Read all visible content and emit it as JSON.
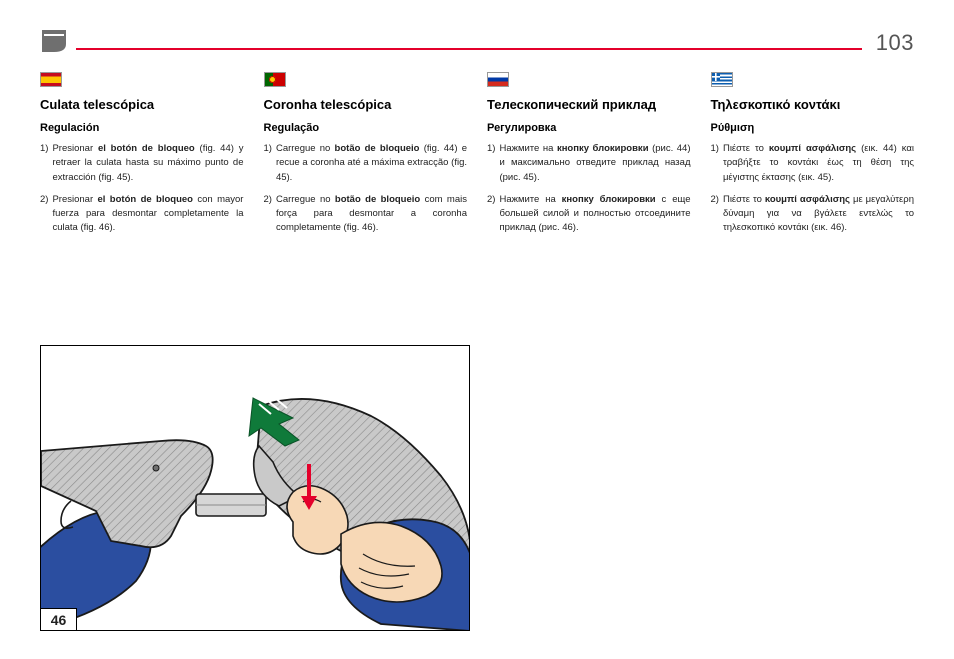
{
  "page_number": "103",
  "columns": [
    {
      "flag_class": "flag-es",
      "title": "Culata telescópica",
      "subtitle": "Regulación",
      "items": [
        {
          "marker": "1)",
          "html": "Presionar <b>el botón de bloqueo</b> (fig. 44) y retraer la culata hasta su máximo punto de extracción (fig. 45)."
        },
        {
          "marker": "2)",
          "html": "Presionar <b>el botón de bloqueo</b> con mayor fuerza para desmontar completamente la culata (fig. 46)."
        }
      ]
    },
    {
      "flag_class": "flag-pt",
      "title": "Coronha telescópica",
      "subtitle": "Regulação",
      "items": [
        {
          "marker": "1)",
          "html": "Carregue no <b>botão de bloqueio</b> (fig. 44) e recue a coronha até a máxima extracção (fig. 45)."
        },
        {
          "marker": "2)",
          "html": "Carregue no <b>botão de bloqueio</b> com mais força para desmontar a coronha completamente (fig. 46)."
        }
      ]
    },
    {
      "flag_class": "flag-ru",
      "title": "Телескопический приклад",
      "subtitle": "Регулировка",
      "items": [
        {
          "marker": "1)",
          "html": "Нажмите на <b>кнопку блокировки</b> (рис. 44) и максимально отведите приклад назад (рис. 45)."
        },
        {
          "marker": "2)",
          "html": "Нажмите на <b>кнопку блокировки</b> с еще большей силой и полностью отсоедините приклад (рис. 46)."
        }
      ]
    },
    {
      "flag_class": "flag-gr",
      "title": "Τηλεσκοπικό κοντάκι",
      "subtitle": "Ρύθμιση",
      "items": [
        {
          "marker": "1)",
          "html": "Πιέστε το <b>κουμπί ασφάλισης</b> (εικ. 44) και τραβήξτε το κοντάκι έως τη θέση της μέγιστης έκτασης (εικ. 45)."
        },
        {
          "marker": "2)",
          "html": "Πιέστε το <b>κουμπί ασφάλισης</b> με μεγαλύτερη δύναμη για να βγάλετε εντελώς το τηλεσκοπικό κοντάκι (εικ. 46)."
        }
      ]
    }
  ],
  "figure": {
    "label": "46",
    "colors": {
      "stroke": "#1a1a1a",
      "skin": "#f7d8b6",
      "sleeve": "#2b4ea0",
      "stock_fill": "#bfbfbf",
      "grip_fill": "#c9c9c9",
      "hatch": "#9a9a9a",
      "arrow_green": "#0f7a3a",
      "arrow_red": "#e4002b",
      "button": "#808080"
    }
  }
}
